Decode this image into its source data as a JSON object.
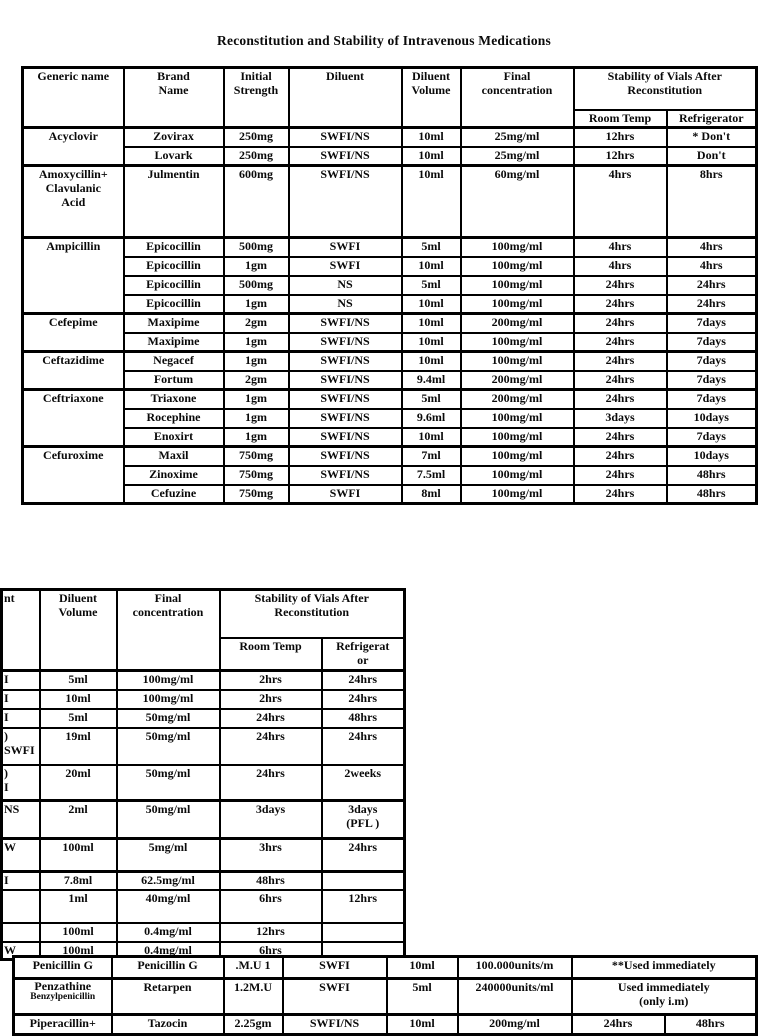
{
  "page": {
    "title": "Reconstitution and Stability of Intravenous Medications"
  },
  "tables": {
    "table1": {
      "rows": [
        {
          "cells": [
            {
              "t": "Generic name",
              "rs": 2
            },
            {
              "t": "Brand\nName",
              "rs": 2
            },
            {
              "t": "Initial\nStrength",
              "rs": 2
            },
            {
              "t": "Diluent",
              "rs": 2
            },
            {
              "t": "Diluent\nVolume",
              "rs": 2
            },
            {
              "t": "Final\nconcentration",
              "rs": 2
            },
            {
              "t": "Stability of Vials After Reconstitution",
              "cs": 2
            }
          ]
        },
        {
          "cells": [
            {
              "t": "Room Temp"
            },
            {
              "t": "Refrigerator"
            }
          ]
        },
        {
          "cells": [
            {
              "t": "Acyclovir",
              "rs": 2
            },
            {
              "t": "Zovirax"
            },
            {
              "t": "250mg"
            },
            {
              "t": "SWFI/NS"
            },
            {
              "t": "10ml"
            },
            {
              "t": "25mg/ml"
            },
            {
              "t": "12hrs"
            },
            {
              "t": "* Don't"
            }
          ]
        },
        {
          "cells": [
            {
              "t": "Lovark"
            },
            {
              "t": "250mg"
            },
            {
              "t": "SWFI/NS"
            },
            {
              "t": "10ml"
            },
            {
              "t": "25mg/ml"
            },
            {
              "t": "12hrs"
            },
            {
              "t": "Don't"
            }
          ]
        },
        {
          "cells": [
            {
              "t": "Amoxycillin+\nClavulanic\nAcid"
            },
            {
              "t": "Julmentin"
            },
            {
              "t": "600mg"
            },
            {
              "t": "SWFI/NS"
            },
            {
              "t": "10ml"
            },
            {
              "t": "60mg/ml"
            },
            {
              "t": "4hrs"
            },
            {
              "t": "8hrs"
            }
          ]
        },
        {
          "cells": [
            {
              "t": "Ampicillin",
              "rs": 4
            },
            {
              "t": "Epicocillin"
            },
            {
              "t": "500mg"
            },
            {
              "t": "SWFI"
            },
            {
              "t": "5ml"
            },
            {
              "t": "100mg/ml"
            },
            {
              "t": "4hrs"
            },
            {
              "t": "4hrs"
            }
          ]
        },
        {
          "cells": [
            {
              "t": "Epicocillin"
            },
            {
              "t": "1gm"
            },
            {
              "t": "SWFI"
            },
            {
              "t": "10ml"
            },
            {
              "t": "100mg/ml"
            },
            {
              "t": "4hrs"
            },
            {
              "t": "4hrs"
            }
          ]
        },
        {
          "cells": [
            {
              "t": "Epicocillin"
            },
            {
              "t": "500mg"
            },
            {
              "t": "NS"
            },
            {
              "t": "5ml"
            },
            {
              "t": "100mg/ml"
            },
            {
              "t": "24hrs"
            },
            {
              "t": "24hrs"
            }
          ]
        },
        {
          "cells": [
            {
              "t": "Epicocillin"
            },
            {
              "t": "1gm"
            },
            {
              "t": "NS"
            },
            {
              "t": "10ml"
            },
            {
              "t": "100mg/ml"
            },
            {
              "t": "24hrs"
            },
            {
              "t": "24hrs"
            }
          ]
        },
        {
          "cells": [
            {
              "t": "Cefepime",
              "rs": 2
            },
            {
              "t": "Maxipime"
            },
            {
              "t": "2gm"
            },
            {
              "t": "SWFI/NS"
            },
            {
              "t": "10ml"
            },
            {
              "t": "200mg/ml"
            },
            {
              "t": "24hrs"
            },
            {
              "t": "7days"
            }
          ]
        },
        {
          "cells": [
            {
              "t": "Maxipime"
            },
            {
              "t": "1gm"
            },
            {
              "t": "SWFI/NS"
            },
            {
              "t": "10ml"
            },
            {
              "t": "100mg/ml"
            },
            {
              "t": "24hrs"
            },
            {
              "t": "7days"
            }
          ]
        },
        {
          "cells": [
            {
              "t": "Ceftazidime",
              "rs": 2
            },
            {
              "t": "Negacef"
            },
            {
              "t": "1gm"
            },
            {
              "t": "SWFI/NS"
            },
            {
              "t": "10ml"
            },
            {
              "t": "100mg/ml"
            },
            {
              "t": "24hrs"
            },
            {
              "t": "7days"
            }
          ]
        },
        {
          "cells": [
            {
              "t": "Fortum"
            },
            {
              "t": "2gm"
            },
            {
              "t": "SWFI/NS"
            },
            {
              "t": "9.4ml"
            },
            {
              "t": "200mg/ml"
            },
            {
              "t": "24hrs"
            },
            {
              "t": "7days"
            }
          ]
        },
        {
          "cells": [
            {
              "t": "Ceftriaxone",
              "rs": 3
            },
            {
              "t": "Triaxone"
            },
            {
              "t": "1gm"
            },
            {
              "t": "SWFI/NS"
            },
            {
              "t": "5ml"
            },
            {
              "t": "200mg/ml"
            },
            {
              "t": "24hrs"
            },
            {
              "t": "7days"
            }
          ]
        },
        {
          "cells": [
            {
              "t": "Rocephine"
            },
            {
              "t": "1gm"
            },
            {
              "t": "SWFI/NS"
            },
            {
              "t": "9.6ml"
            },
            {
              "t": "100mg/ml"
            },
            {
              "t": "3days"
            },
            {
              "t": "10days"
            }
          ]
        },
        {
          "cells": [
            {
              "t": "Enoxirt"
            },
            {
              "t": "1gm"
            },
            {
              "t": "SWFI/NS"
            },
            {
              "t": "10ml"
            },
            {
              "t": "100mg/ml"
            },
            {
              "t": "24hrs"
            },
            {
              "t": "7days"
            }
          ]
        },
        {
          "cells": [
            {
              "t": "Cefuroxime",
              "rs": 3
            },
            {
              "t": "Maxil"
            },
            {
              "t": "750mg"
            },
            {
              "t": "SWFI/NS"
            },
            {
              "t": "7ml"
            },
            {
              "t": "100mg/ml"
            },
            {
              "t": "24hrs"
            },
            {
              "t": "10days"
            }
          ]
        },
        {
          "cells": [
            {
              "t": "Zinoxime"
            },
            {
              "t": "750mg"
            },
            {
              "t": "SWFI/NS"
            },
            {
              "t": "7.5ml"
            },
            {
              "t": "100mg/ml"
            },
            {
              "t": "24hrs"
            },
            {
              "t": "48hrs"
            }
          ]
        },
        {
          "cells": [
            {
              "t": "Cefuzine"
            },
            {
              "t": "750mg"
            },
            {
              "t": "SWFI"
            },
            {
              "t": "8ml"
            },
            {
              "t": "100mg/ml"
            },
            {
              "t": "24hrs"
            },
            {
              "t": "48hrs"
            }
          ]
        }
      ]
    },
    "table2": {
      "rows": [
        {
          "cells": [
            {
              "t": "nt",
              "rs": 2,
              "frag": true
            },
            {
              "t": "Diluent\nVolume",
              "rs": 2
            },
            {
              "t": "Final\nconcentration",
              "rs": 2
            },
            {
              "t": "Stability of Vials After Reconstitution",
              "cs": 2
            }
          ]
        },
        {
          "cells": [
            {
              "t": "Room Temp"
            },
            {
              "t": "Refrigerat\nor"
            }
          ]
        },
        {
          "cells": [
            {
              "t": "I",
              "frag": true
            },
            {
              "t": "5ml"
            },
            {
              "t": "100mg/ml"
            },
            {
              "t": "2hrs"
            },
            {
              "t": "24hrs"
            }
          ]
        },
        {
          "cells": [
            {
              "t": "I",
              "frag": true
            },
            {
              "t": "10ml"
            },
            {
              "t": "100mg/ml"
            },
            {
              "t": "2hrs"
            },
            {
              "t": "24hrs"
            }
          ]
        },
        {
          "cells": [
            {
              "t": "I",
              "frag": true
            },
            {
              "t": "5ml"
            },
            {
              "t": "50mg/ml"
            },
            {
              "t": "24hrs"
            },
            {
              "t": "48hrs"
            }
          ]
        },
        {
          "cells": [
            {
              "t": ")\nSWFI",
              "frag": true
            },
            {
              "t": "19ml"
            },
            {
              "t": "50mg/ml"
            },
            {
              "t": "24hrs"
            },
            {
              "t": "24hrs"
            }
          ]
        },
        {
          "cells": [
            {
              "t": ")\nI",
              "frag": true
            },
            {
              "t": "20ml"
            },
            {
              "t": "50mg/ml"
            },
            {
              "t": "24hrs"
            },
            {
              "t": "2weeks"
            }
          ]
        },
        {
          "cells": [
            {
              "t": "NS",
              "frag": true
            },
            {
              "t": "2ml"
            },
            {
              "t": "50mg/ml"
            },
            {
              "t": "3days"
            },
            {
              "t": "3days\n(PFL )"
            }
          ]
        },
        {
          "cells": [
            {
              "t": "W",
              "frag": true
            },
            {
              "t": "100ml"
            },
            {
              "t": "5mg/ml"
            },
            {
              "t": "3hrs"
            },
            {
              "t": "24hrs"
            }
          ]
        },
        {
          "cells": [
            {
              "t": "I",
              "frag": true
            },
            {
              "t": "7.8ml"
            },
            {
              "t": "62.5mg/ml"
            },
            {
              "t": "48hrs"
            },
            {
              "t": ""
            }
          ]
        },
        {
          "cells": [
            {
              "t": "",
              "frag": true
            },
            {
              "t": "1ml"
            },
            {
              "t": "40mg/ml"
            },
            {
              "t": "6hrs"
            },
            {
              "t": "12hrs"
            }
          ]
        },
        {
          "cells": [
            {
              "t": "",
              "frag": true
            },
            {
              "t": "100ml"
            },
            {
              "t": "0.4mg/ml"
            },
            {
              "t": "12hrs"
            },
            {
              "t": ""
            }
          ]
        },
        {
          "cells": [
            {
              "t": "W",
              "frag": true
            },
            {
              "t": "100ml"
            },
            {
              "t": "0.4mg/ml"
            },
            {
              "t": "6hrs"
            },
            {
              "t": ""
            }
          ]
        }
      ]
    },
    "table3": {
      "rows": [
        {
          "cells": [
            {
              "t": "Penicillin G"
            },
            {
              "t": "Penicillin G"
            },
            {
              "t": ".M.U 1"
            },
            {
              "t": "SWFI"
            },
            {
              "t": "10ml"
            },
            {
              "t": "100.000units/m"
            },
            {
              "t": "**Used immediately",
              "cs": 2
            }
          ]
        },
        {
          "cells": [
            {
              "lines": [
                "Penzathine",
                "Benzylpenicillin"
              ]
            },
            {
              "t": "Retarpen"
            },
            {
              "t": "1.2M.U"
            },
            {
              "t": "SWFI"
            },
            {
              "t": "5ml"
            },
            {
              "t": "240000units/ml"
            },
            {
              "t": "Used immediately\n(only i.m)",
              "cs": 2
            }
          ]
        },
        {
          "cells": [
            {
              "t": "Piperacillin+"
            },
            {
              "t": "Tazocin"
            },
            {
              "t": "2.25gm"
            },
            {
              "t": "SWFI/NS"
            },
            {
              "t": "10ml"
            },
            {
              "t": "200mg/ml"
            },
            {
              "t": "24hrs"
            },
            {
              "t": "48hrs"
            }
          ]
        }
      ]
    }
  }
}
